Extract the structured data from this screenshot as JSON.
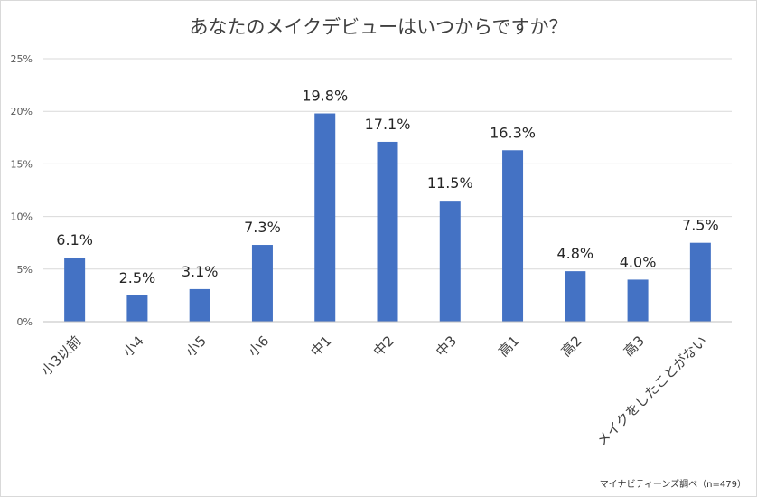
{
  "chart_data": {
    "type": "bar",
    "title": "あなたのメイクデビューはいつからですか？",
    "categories": [
      "小3以前",
      "小4",
      "小5",
      "小6",
      "中1",
      "中2",
      "中3",
      "高1",
      "高2",
      "高3",
      "メイクをしたことがない"
    ],
    "values": [
      6.1,
      2.5,
      3.1,
      7.3,
      19.8,
      17.1,
      11.5,
      16.3,
      4.8,
      4.0,
      7.5
    ],
    "data_labels": [
      "6.1%",
      "2.5%",
      "3.1%",
      "7.3%",
      "19.8%",
      "17.1%",
      "11.5%",
      "16.3%",
      "4.8%",
      "4.0%",
      "7.5%"
    ],
    "yticks": [
      "0%",
      "5%",
      "10%",
      "15%",
      "20%",
      "25%"
    ],
    "ylim": [
      0,
      25
    ],
    "grid": true,
    "bar_color": "#4472c4",
    "source": "マイナビティーンズ調べ（n=479）"
  }
}
